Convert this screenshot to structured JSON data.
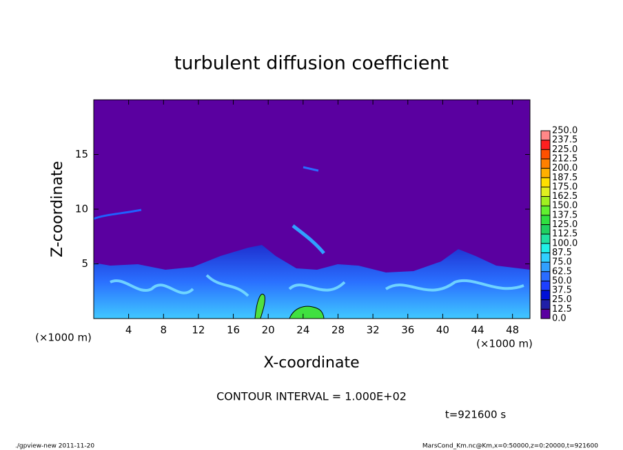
{
  "chart_data": {
    "type": "contour",
    "title": "turbulent diffusion coefficient",
    "x_label": "X-coordinate",
    "y_label": "Z-coordinate",
    "x_units": "(×1000 m)",
    "y_units": "(×1000 m)",
    "xlim": [
      0,
      50
    ],
    "ylim": [
      0,
      20
    ],
    "xticks": [
      4,
      8,
      12,
      16,
      20,
      24,
      28,
      32,
      36,
      40,
      44,
      48
    ],
    "yticks": [
      5,
      10,
      15
    ],
    "colorbar": {
      "levels": [
        {
          "value": 0,
          "label": "0.0"
        },
        {
          "value": 12.5,
          "label": "12.5"
        },
        {
          "value": 25,
          "label": "25.0"
        },
        {
          "value": 37.5,
          "label": "37.5"
        },
        {
          "value": 50,
          "label": "50.0"
        },
        {
          "value": 62.5,
          "label": "62.5"
        },
        {
          "value": 75,
          "label": "75.0"
        },
        {
          "value": 87.5,
          "label": "87.5"
        },
        {
          "value": 100,
          "label": "100.0"
        },
        {
          "value": 112.5,
          "label": "112.5"
        },
        {
          "value": 125,
          "label": "125.0"
        },
        {
          "value": 137.5,
          "label": "137.5"
        },
        {
          "value": 150,
          "label": "150.0"
        },
        {
          "value": 162.5,
          "label": "162.5"
        },
        {
          "value": 175,
          "label": "175.0"
        },
        {
          "value": 187.5,
          "label": "187.5"
        },
        {
          "value": 200,
          "label": "200.0"
        },
        {
          "value": 212.5,
          "label": "212.5"
        },
        {
          "value": 225,
          "label": "225.0"
        },
        {
          "value": 237.5,
          "label": "237.5"
        },
        {
          "value": 250,
          "label": "250.0"
        }
      ],
      "colors": [
        "#5a00a0",
        "#2020a8",
        "#0010d8",
        "#1e40ff",
        "#2a6cff",
        "#30a0ff",
        "#30d0ff",
        "#20f0e8",
        "#20e0a0",
        "#20d060",
        "#30e040",
        "#60f030",
        "#a0f020",
        "#e0f020",
        "#ffe000",
        "#ffb000",
        "#ff8000",
        "#ff5000",
        "#ff2020",
        "#ff8888"
      ]
    },
    "contour_interval": "CONTOUR INTERVAL = 1.000E+02",
    "time_label": "t=921600 s",
    "footer_left": "./gpview-new   2011-11-20",
    "footer_right": "MarsCond_Km.nc@Km,x=0:50000,z=0:20000,t=921600"
  }
}
